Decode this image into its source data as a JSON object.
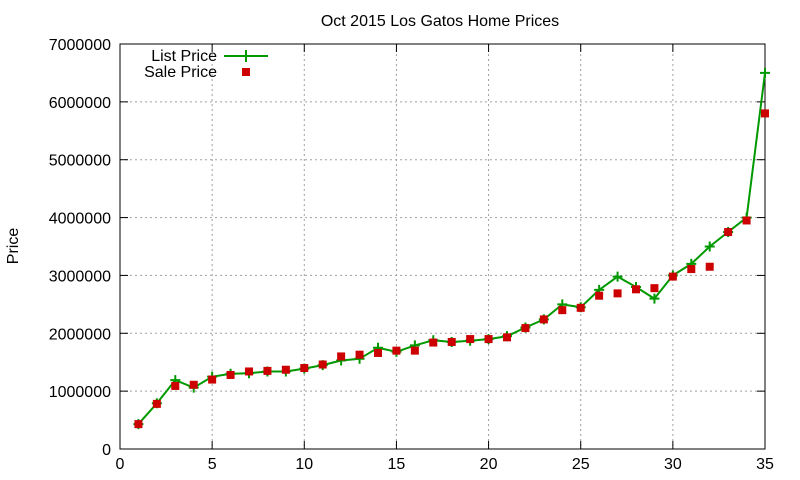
{
  "chart_data": {
    "type": "line",
    "title": "Oct 2015 Los Gatos Home Prices",
    "xlabel": "",
    "ylabel": "Price",
    "xlim": [
      0,
      35
    ],
    "ylim": [
      0,
      7000000
    ],
    "x_ticks": [
      0,
      5,
      10,
      15,
      20,
      25,
      30,
      35
    ],
    "y_ticks": [
      0,
      1000000,
      2000000,
      3000000,
      4000000,
      5000000,
      6000000,
      7000000
    ],
    "grid": true,
    "legend_position": "top-left",
    "series": [
      {
        "name": "List Price",
        "style": "line-plus",
        "color": "#009900",
        "x": [
          1,
          2,
          3,
          4,
          5,
          6,
          7,
          8,
          9,
          10,
          11,
          12,
          13,
          14,
          15,
          16,
          17,
          18,
          19,
          20,
          21,
          22,
          23,
          24,
          25,
          26,
          27,
          28,
          29,
          30,
          31,
          32,
          33,
          34,
          35
        ],
        "values": [
          430000,
          790000,
          1190000,
          1060000,
          1250000,
          1300000,
          1310000,
          1340000,
          1340000,
          1390000,
          1450000,
          1530000,
          1560000,
          1750000,
          1680000,
          1790000,
          1880000,
          1850000,
          1870000,
          1900000,
          1950000,
          2100000,
          2240000,
          2500000,
          2450000,
          2750000,
          2980000,
          2800000,
          2600000,
          3000000,
          3200000,
          3500000,
          3750000,
          4000000,
          6500000
        ]
      },
      {
        "name": "Sale Price",
        "style": "square-markers",
        "color": "#cc0000",
        "x": [
          1,
          2,
          3,
          4,
          5,
          6,
          7,
          8,
          9,
          10,
          11,
          12,
          13,
          14,
          15,
          16,
          17,
          18,
          19,
          20,
          21,
          22,
          23,
          24,
          25,
          26,
          27,
          28,
          29,
          30,
          31,
          32,
          33,
          34,
          35
        ],
        "values": [
          430000,
          780000,
          1090000,
          1110000,
          1200000,
          1280000,
          1340000,
          1350000,
          1370000,
          1400000,
          1460000,
          1600000,
          1630000,
          1660000,
          1700000,
          1700000,
          1840000,
          1850000,
          1900000,
          1900000,
          1930000,
          2090000,
          2240000,
          2400000,
          2440000,
          2650000,
          2690000,
          2760000,
          2780000,
          2980000,
          3110000,
          3150000,
          3750000,
          3950000,
          5800000
        ]
      }
    ]
  }
}
